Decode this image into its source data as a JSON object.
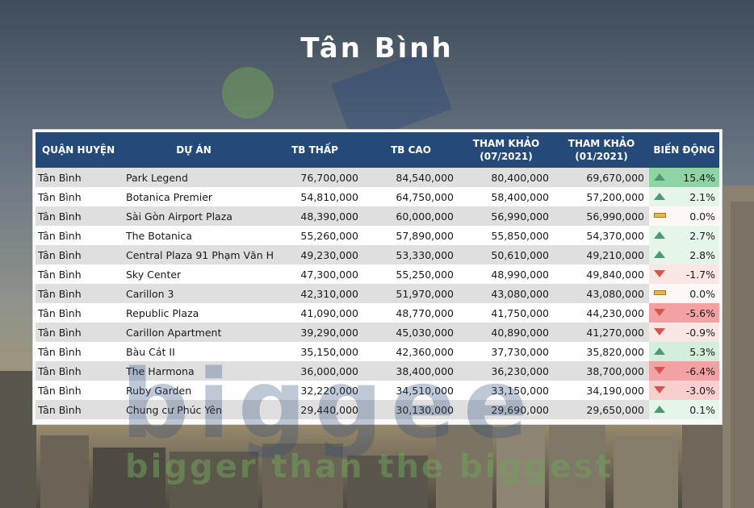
{
  "title": "Tân Bình",
  "watermark": {
    "brand": "biggee",
    "tagline": "bigger than the biggest"
  },
  "colors": {
    "header_bg": "#244a7a",
    "row_odd": "#d6d6d6",
    "row_even": "#ffffff",
    "up_strong": "#8fd4a4",
    "up_light": "#e6f5ea",
    "down_strong": "#f2a2a2",
    "down_light": "#fbe6e6",
    "neutral": "#fdf7f7"
  },
  "table": {
    "headers": {
      "district": "QUẬN HUYỆN",
      "project": "DỰ ÁN",
      "low": "TB THẤP",
      "high": "TB CAO",
      "ref_jul_1": "THAM KHẢO",
      "ref_jul_2": "(07/2021)",
      "ref_jan_1": "THAM KHẢO",
      "ref_jan_2": "(01/2021)",
      "change": "BIẾN ĐỘNG"
    },
    "rows": [
      {
        "district": "Tân Bình",
        "project": "Park Legend",
        "low": "76,700,000",
        "high": "84,540,000",
        "ref_jul": "80,400,000",
        "ref_jan": "69,670,000",
        "change": "15.4%",
        "trend": "up",
        "change_value": 15.4
      },
      {
        "district": "Tân Bình",
        "project": "Botanica Premier",
        "low": "54,810,000",
        "high": "64,750,000",
        "ref_jul": "58,400,000",
        "ref_jan": "57,200,000",
        "change": "2.1%",
        "trend": "up",
        "change_value": 2.1
      },
      {
        "district": "Tân Bình",
        "project": "Sài Gòn Airport Plaza",
        "low": "48,390,000",
        "high": "60,000,000",
        "ref_jul": "56,990,000",
        "ref_jan": "56,990,000",
        "change": "0.0%",
        "trend": "flat",
        "change_value": 0.0
      },
      {
        "district": "Tân Bình",
        "project": "The Botanica",
        "low": "55,260,000",
        "high": "57,890,000",
        "ref_jul": "55,850,000",
        "ref_jan": "54,370,000",
        "change": "2.7%",
        "trend": "up",
        "change_value": 2.7
      },
      {
        "district": "Tân Bình",
        "project": "Central Plaza 91 Phạm Văn H",
        "low": "49,230,000",
        "high": "53,330,000",
        "ref_jul": "50,610,000",
        "ref_jan": "49,210,000",
        "change": "2.8%",
        "trend": "up",
        "change_value": 2.8
      },
      {
        "district": "Tân Bình",
        "project": "Sky Center",
        "low": "47,300,000",
        "high": "55,250,000",
        "ref_jul": "48,990,000",
        "ref_jan": "49,840,000",
        "change": "-1.7%",
        "trend": "down",
        "change_value": -1.7
      },
      {
        "district": "Tân Bình",
        "project": "Carillon 3",
        "low": "42,310,000",
        "high": "51,970,000",
        "ref_jul": "43,080,000",
        "ref_jan": "43,080,000",
        "change": "0.0%",
        "trend": "flat",
        "change_value": 0.0
      },
      {
        "district": "Tân Bình",
        "project": "Republic Plaza",
        "low": "41,090,000",
        "high": "48,770,000",
        "ref_jul": "41,750,000",
        "ref_jan": "44,230,000",
        "change": "-5.6%",
        "trend": "down",
        "change_value": -5.6
      },
      {
        "district": "Tân Bình",
        "project": "Carillon Apartment",
        "low": "39,290,000",
        "high": "45,030,000",
        "ref_jul": "40,890,000",
        "ref_jan": "41,270,000",
        "change": "-0.9%",
        "trend": "down",
        "change_value": -0.9
      },
      {
        "district": "Tân Bình",
        "project": "Bàu Cát II",
        "low": "35,150,000",
        "high": "42,360,000",
        "ref_jul": "37,730,000",
        "ref_jan": "35,820,000",
        "change": "5.3%",
        "trend": "up",
        "change_value": 5.3
      },
      {
        "district": "Tân Bình",
        "project": "The Harmona",
        "low": "36,000,000",
        "high": "38,400,000",
        "ref_jul": "36,230,000",
        "ref_jan": "38,700,000",
        "change": "-6.4%",
        "trend": "down",
        "change_value": -6.4
      },
      {
        "district": "Tân Bình",
        "project": "Ruby Garden",
        "low": "32,220,000",
        "high": "34,510,000",
        "ref_jul": "33,150,000",
        "ref_jan": "34,190,000",
        "change": "-3.0%",
        "trend": "down",
        "change_value": -3.0
      },
      {
        "district": "Tân Bình",
        "project": "Chung cư Phúc Yên",
        "low": "29,440,000",
        "high": "30,130,000",
        "ref_jul": "29,690,000",
        "ref_jan": "29,650,000",
        "change": "0.1%",
        "trend": "up",
        "change_value": 0.1
      }
    ]
  }
}
